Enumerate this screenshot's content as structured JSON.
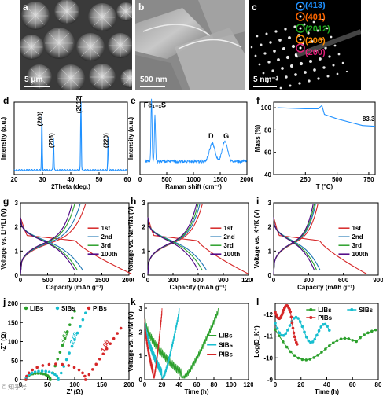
{
  "panels": {
    "a": {
      "label": "a",
      "scale": "5 μm"
    },
    "b": {
      "label": "b",
      "scale": "500 nm"
    },
    "c": {
      "label": "c",
      "scale": "5 nm⁻¹",
      "rings": [
        "(413)",
        "(401)",
        "(2012)",
        "(206)",
        "(200)"
      ],
      "ring_colors": [
        "#1e90ff",
        "#ff6600",
        "#22aa22",
        "#ff8c00",
        "#e0207a"
      ]
    },
    "d": {
      "label": "d"
    },
    "e": {
      "label": "e"
    },
    "f": {
      "label": "f"
    },
    "g": {
      "label": "g"
    },
    "h": {
      "label": "h"
    },
    "i": {
      "label": "i"
    },
    "j": {
      "label": "j"
    },
    "k": {
      "label": "k"
    },
    "l": {
      "label": "l"
    }
  },
  "watermark": "© 知乎号",
  "chart_data": [
    {
      "id": "d",
      "type": "line",
      "xlabel": "2Theta (deg.)",
      "ylabel": "Intensity (a.u.)",
      "xlim": [
        20,
        60
      ],
      "xticks": [
        20,
        30,
        40,
        50,
        60
      ],
      "peaks": [
        {
          "x": 29.8,
          "h": 0.75,
          "label": "(200)"
        },
        {
          "x": 33.9,
          "h": 0.45,
          "label": "(206)"
        },
        {
          "x": 43.6,
          "h": 0.95,
          "label": "(2012)"
        },
        {
          "x": 53.2,
          "h": 0.45,
          "label": "(220)"
        }
      ],
      "color": "#1e90ff"
    },
    {
      "id": "e",
      "type": "line",
      "xlabel": "Raman shift (cm⁻¹)",
      "ylabel": "Intensity (a.u.)",
      "xlim": [
        0,
        2000
      ],
      "xticks": [
        0,
        500,
        1000,
        1500,
        2000
      ],
      "annotations": [
        "Fe₁₋ₓS",
        "D",
        "G"
      ],
      "peaks": [
        {
          "x": 215,
          "h": 0.85
        },
        {
          "x": 280,
          "h": 0.65
        },
        {
          "x": 1350,
          "h": 0.25
        },
        {
          "x": 1590,
          "h": 0.28
        }
      ],
      "color": "#1e90ff"
    },
    {
      "id": "f",
      "type": "line",
      "xlabel": "T (°C)",
      "ylabel": "Mass (%)",
      "xlim": [
        0,
        800
      ],
      "ylim": [
        40,
        105
      ],
      "xticks": [
        250,
        500,
        750
      ],
      "yticks": [
        40,
        60,
        80,
        100
      ],
      "annotation": "83.3",
      "x": [
        30,
        150,
        250,
        350,
        380,
        400,
        500,
        600,
        700,
        800
      ],
      "y": [
        100,
        99.5,
        99,
        99,
        102,
        94,
        90,
        87,
        84,
        83.3
      ],
      "color": "#1e90ff"
    },
    {
      "id": "g",
      "type": "line",
      "xlabel": "Capacity (mAh g⁻¹)",
      "ylabel": "Voltage vs. Li⁺/Li (V)",
      "xlim": [
        0,
        2000
      ],
      "ylim": [
        0,
        3
      ],
      "xticks": [
        0,
        500,
        1000,
        1500,
        2000
      ],
      "yticks": [
        0,
        1,
        2,
        3
      ],
      "legend": [
        "1st",
        "2nd",
        "3rd",
        "100th"
      ],
      "colors": [
        "#d62728",
        "#1f77b4",
        "#2ca02c",
        "#4b0082"
      ],
      "discharge_max": [
        2050,
        1150,
        1050,
        1000
      ],
      "charge_max": [
        1200,
        1100,
        1000,
        950
      ]
    },
    {
      "id": "h",
      "type": "line",
      "xlabel": "Capacity (mAh g⁻¹)",
      "ylabel": "Voltage vs. Na⁺/Na (V)",
      "xlim": [
        0,
        1200
      ],
      "ylim": [
        0,
        3
      ],
      "xticks": [
        0,
        300,
        600,
        900,
        1200
      ],
      "yticks": [
        0,
        1,
        2,
        3
      ],
      "legend": [
        "1st",
        "2nd",
        "3rd",
        "100th"
      ],
      "colors": [
        "#d62728",
        "#1f77b4",
        "#2ca02c",
        "#4b0082"
      ],
      "discharge_max": [
        1200,
        700,
        650,
        600
      ],
      "charge_max": [
        650,
        620,
        600,
        580
      ]
    },
    {
      "id": "i",
      "type": "line",
      "xlabel": "Capacity (mAh g⁻¹)",
      "ylabel": "Voltage vs. K⁺/K (V)",
      "xlim": [
        0,
        900
      ],
      "ylim": [
        0,
        3
      ],
      "xticks": [
        0,
        300,
        600,
        900
      ],
      "yticks": [
        0,
        1,
        2,
        3
      ],
      "legend": [
        "1st",
        "2nd",
        "3rd",
        "100th"
      ],
      "colors": [
        "#d62728",
        "#1f77b4",
        "#2ca02c",
        "#4b0082"
      ],
      "discharge_max": [
        800,
        400,
        370,
        350
      ],
      "charge_max": [
        380,
        360,
        350,
        340
      ]
    },
    {
      "id": "j",
      "type": "scatter",
      "xlabel": "Z' (Ω)",
      "ylabel": "-Z'' (Ω)",
      "xlim": [
        0,
        200
      ],
      "ylim": [
        0,
        200
      ],
      "xticks": [
        0,
        50,
        100,
        150,
        200
      ],
      "yticks": [
        0,
        50,
        100,
        150,
        200
      ],
      "legend": [
        "LIBs",
        "SIBs",
        "PIBs"
      ],
      "colors": [
        "#2ca02c",
        "#17becf",
        "#d62728"
      ],
      "slopes": [
        "3.62",
        "2.09",
        "1.66"
      ],
      "semicircle_end": [
        55,
        70,
        120
      ],
      "tail_end": [
        [
          100,
          180
        ],
        [
          120,
          175
        ],
        [
          185,
          135
        ]
      ]
    },
    {
      "id": "k",
      "type": "line",
      "xlabel": "Time (h)",
      "ylabel": "Voltage vs. M⁺/M (V)",
      "xlim": [
        0,
        120
      ],
      "ylim": [
        0,
        3.2
      ],
      "xticks": [
        0,
        20,
        40,
        60,
        80,
        100,
        120
      ],
      "yticks": [
        0,
        1,
        2,
        3
      ],
      "legend": [
        "LIBs",
        "SIBs",
        "PIBs"
      ],
      "colors": [
        "#2ca02c",
        "#17becf",
        "#d62728"
      ],
      "t_end": [
        85,
        40,
        20
      ]
    },
    {
      "id": "l",
      "type": "line",
      "xlabel": "Time (h)",
      "ylabel": "Log(D_K⁺)",
      "xlim": [
        0,
        80
      ],
      "ylim": [
        -9,
        -12.5
      ],
      "xticks": [
        0,
        20,
        40,
        60,
        80
      ],
      "yticks": [
        -9,
        -10,
        -11,
        -12
      ],
      "legend": [
        "LIBs",
        "SIBs",
        "PIBs"
      ],
      "colors": [
        "#2ca02c",
        "#17becf",
        "#d62728"
      ],
      "t_end": [
        78,
        42,
        17
      ]
    }
  ]
}
